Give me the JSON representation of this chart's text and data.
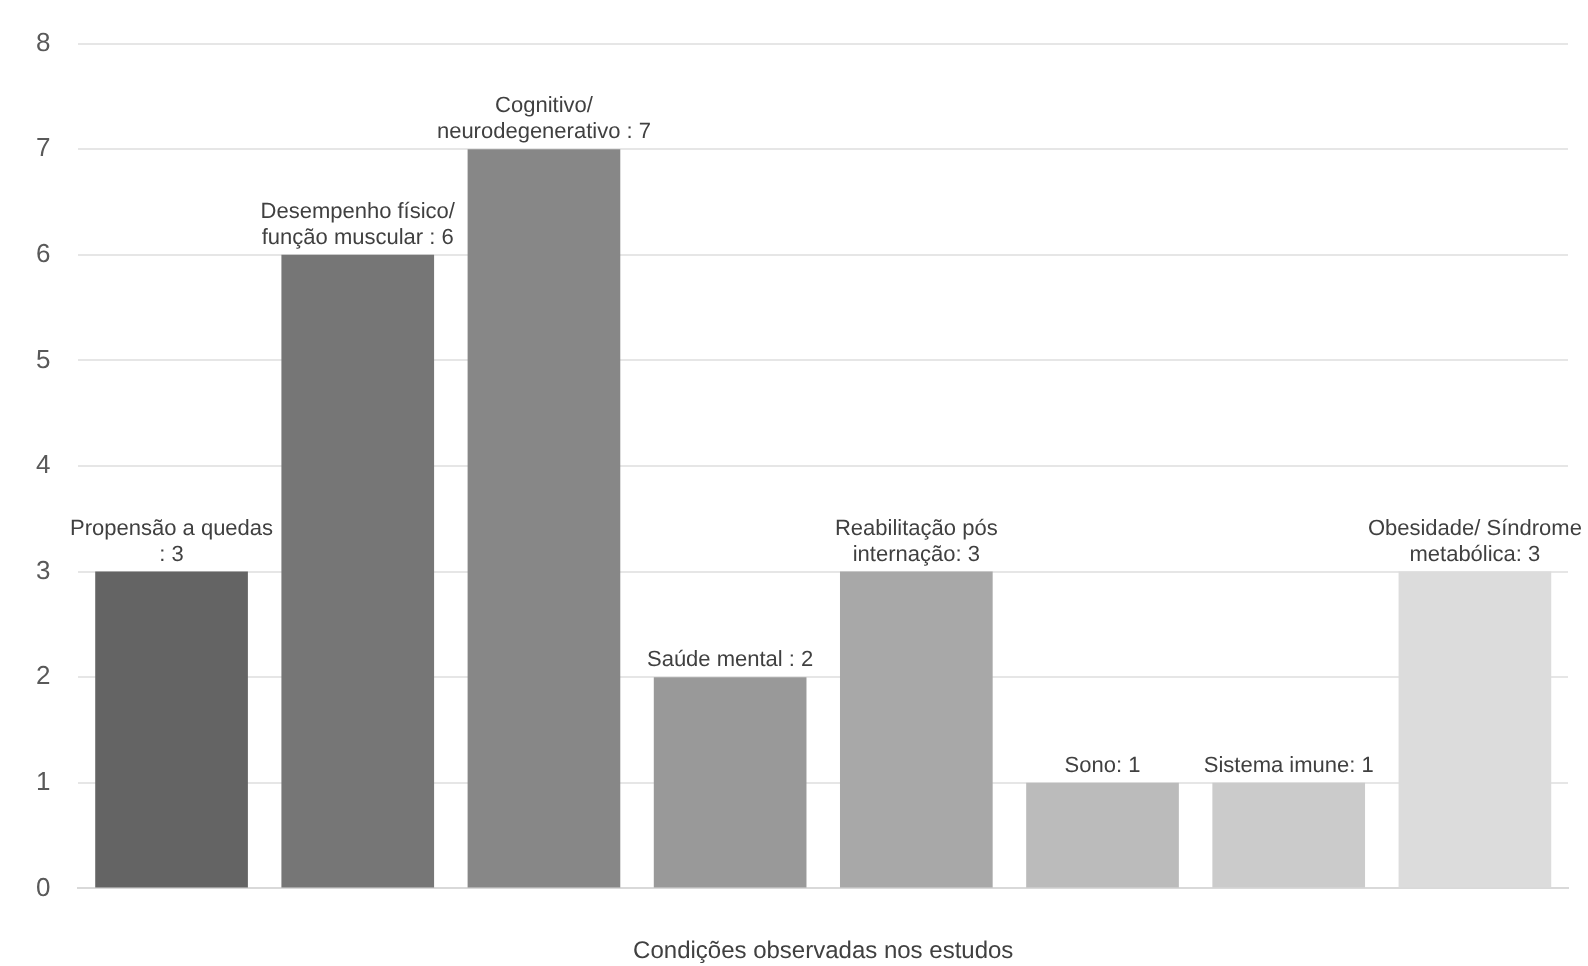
{
  "chart_data": {
    "type": "bar",
    "xlabel": "Condições observadas nos estudos",
    "categories": [
      null,
      null,
      null,
      null,
      null,
      null,
      null,
      null
    ],
    "values": [
      3,
      6,
      7,
      2,
      3,
      1,
      1,
      3
    ],
    "colors": [
      "#646464",
      "#767676",
      "#878787",
      "#999999",
      "#a8a8a8",
      "#bbbbbb",
      "#cbcbcb",
      "#dcdcdc"
    ],
    "value_labels": [
      "Propensão a quedas : 3",
      "Desempenho físico/ função muscular : 6",
      "Cognitivo/ neurodegenerativo : 7",
      "Saúde mental : 2",
      "Reabilitação pós internação: 3",
      "Sono: 1",
      "Sistema imune: 1",
      "Obesidade/ Síndrome metabólica: 3"
    ],
    "ylim": [
      0,
      8
    ],
    "yticks": [
      0,
      1,
      2,
      3,
      4,
      5,
      6,
      7,
      8
    ],
    "grid": "y",
    "legend": false
  }
}
